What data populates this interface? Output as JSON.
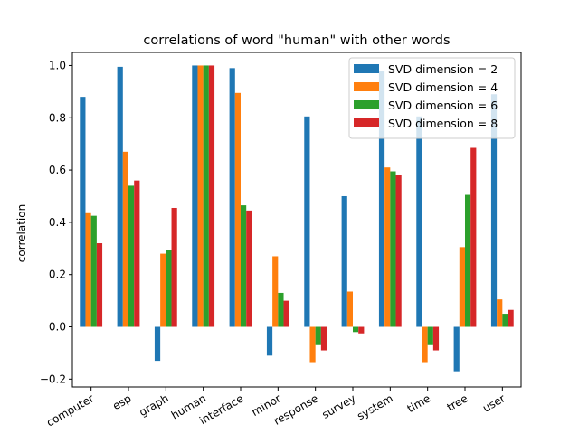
{
  "chart_data": {
    "type": "bar",
    "title": "correlations of word \"human\" with other words",
    "xlabel": "",
    "ylabel": "correlation",
    "categories": [
      "computer",
      "esp",
      "graph",
      "human",
      "interface",
      "minor",
      "response",
      "survey",
      "system",
      "time",
      "tree",
      "user"
    ],
    "ylim": [
      -0.23,
      1.05
    ],
    "yticks": [
      -0.2,
      0.0,
      0.2,
      0.4,
      0.6,
      0.8,
      1.0
    ],
    "ytick_labels": [
      "−0.2",
      "0.0",
      "0.2",
      "0.4",
      "0.6",
      "0.8",
      "1.0"
    ],
    "grid": false,
    "legend_position": "top-right",
    "series": [
      {
        "name": "SVD dimension = 2",
        "color": "#1f77b4",
        "values": [
          0.88,
          0.995,
          -0.13,
          1.0,
          0.99,
          -0.11,
          0.805,
          0.5,
          0.98,
          0.805,
          -0.17,
          0.89
        ]
      },
      {
        "name": "SVD dimension = 4",
        "color": "#ff7f0e",
        "values": [
          0.435,
          0.67,
          0.28,
          1.0,
          0.895,
          0.27,
          -0.135,
          0.135,
          0.61,
          -0.135,
          0.305,
          0.105
        ]
      },
      {
        "name": "SVD dimension = 6",
        "color": "#2ca02c",
        "values": [
          0.425,
          0.54,
          0.295,
          1.0,
          0.465,
          0.13,
          -0.07,
          -0.02,
          0.595,
          -0.07,
          0.505,
          0.05
        ]
      },
      {
        "name": "SVD dimension = 8",
        "color": "#d62728",
        "values": [
          0.32,
          0.56,
          0.455,
          1.0,
          0.445,
          0.1,
          -0.09,
          -0.025,
          0.58,
          -0.09,
          0.685,
          0.065
        ]
      }
    ]
  }
}
